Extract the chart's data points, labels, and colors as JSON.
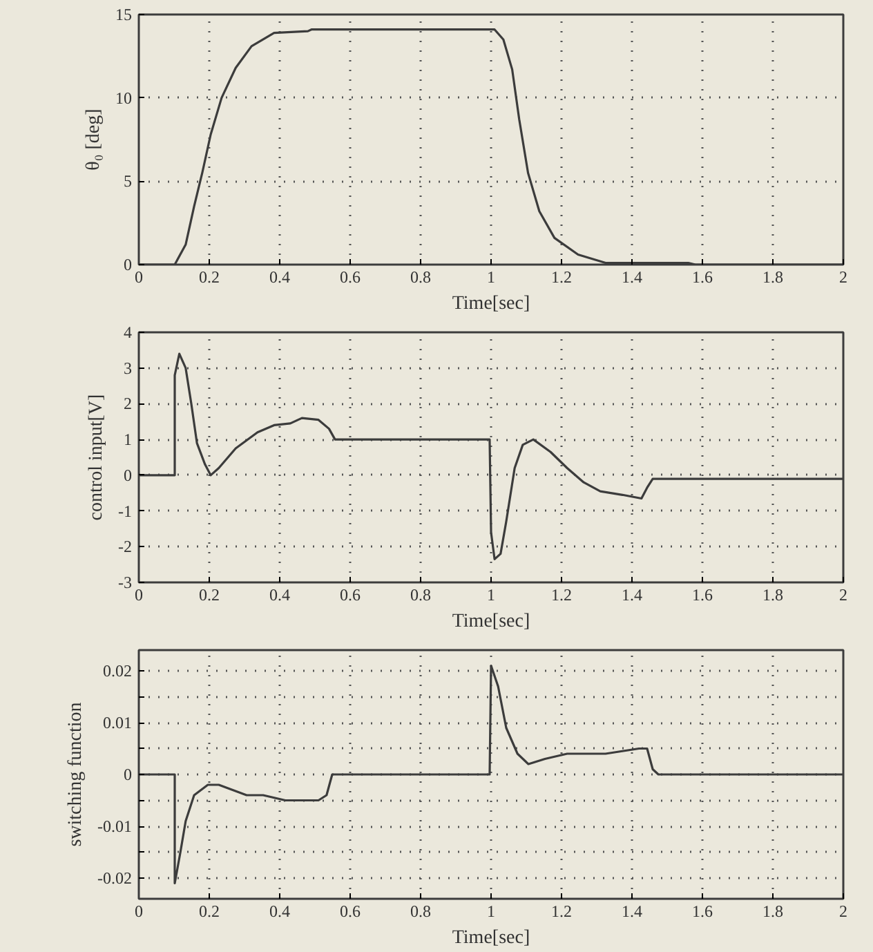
{
  "chart_data": [
    {
      "type": "line",
      "xlabel": "Time[sec]",
      "ylabel": "θ₀ [deg]",
      "color": "#3c3c3c",
      "grid": true,
      "x": [
        0,
        0.102,
        0.133,
        0.157,
        0.18,
        0.204,
        0.235,
        0.275,
        0.32,
        0.384,
        0.48,
        0.49,
        1.01,
        1.035,
        1.06,
        1.08,
        1.105,
        1.137,
        1.18,
        1.247,
        1.325,
        1.56,
        1.58,
        2
      ],
      "values": [
        0,
        0,
        1.2,
        3.5,
        5.5,
        7.8,
        10,
        11.8,
        13.1,
        13.9,
        14.0,
        14.1,
        14.1,
        13.5,
        11.7,
        8.7,
        5.5,
        3.2,
        1.6,
        0.6,
        0.1,
        0.1,
        0,
        0
      ],
      "xlim": [
        0,
        2
      ],
      "ylim": [
        0,
        15
      ],
      "xticks": [
        0,
        0.2,
        0.4,
        0.6,
        0.8,
        1,
        1.2,
        1.4,
        1.6,
        1.8,
        2
      ],
      "yticks": [
        0,
        5,
        10,
        15
      ]
    },
    {
      "type": "line",
      "xlabel": "Time[sec]",
      "ylabel": "control input[V]",
      "color": "#3c3c3c",
      "grid": true,
      "x": [
        0,
        0.102,
        0.102,
        0.115,
        0.133,
        0.149,
        0.165,
        0.188,
        0.204,
        0.227,
        0.275,
        0.337,
        0.384,
        0.43,
        0.463,
        0.51,
        0.54,
        0.557,
        0.996,
        1.0,
        1.01,
        1.027,
        1.043,
        1.067,
        1.09,
        1.12,
        1.169,
        1.216,
        1.263,
        1.31,
        1.373,
        1.427,
        1.443,
        1.459,
        2
      ],
      "values": [
        0,
        0,
        2.8,
        3.4,
        3.0,
        2.0,
        0.9,
        0.3,
        0,
        0.2,
        0.75,
        1.2,
        1.4,
        1.45,
        1.6,
        1.55,
        1.3,
        1.0,
        1.0,
        -1.6,
        -2.35,
        -2.2,
        -1.3,
        0.2,
        0.85,
        1.0,
        0.65,
        0.2,
        -0.2,
        -0.45,
        -0.55,
        -0.65,
        -0.35,
        -0.1,
        -0.1
      ],
      "xlim": [
        0,
        2
      ],
      "ylim": [
        -3,
        4
      ],
      "xticks": [
        0,
        0.2,
        0.4,
        0.6,
        0.8,
        1,
        1.2,
        1.4,
        1.6,
        1.8,
        2
      ],
      "yticks": [
        -3,
        -2,
        -1,
        0,
        1,
        2,
        3,
        4
      ]
    },
    {
      "type": "line",
      "xlabel": "Time[sec]",
      "ylabel": "switching function",
      "color": "#3c3c3c",
      "grid": true,
      "x": [
        0,
        0.102,
        0.102,
        0.118,
        0.133,
        0.157,
        0.196,
        0.227,
        0.306,
        0.353,
        0.416,
        0.51,
        0.533,
        0.549,
        0.996,
        1.0,
        1.02,
        1.043,
        1.075,
        1.106,
        1.153,
        1.216,
        1.325,
        1.42,
        1.443,
        1.459,
        1.475,
        2
      ],
      "values": [
        0,
        0,
        -0.021,
        -0.015,
        -0.009,
        -0.004,
        -0.002,
        -0.002,
        -0.004,
        -0.004,
        -0.005,
        -0.005,
        -0.004,
        0,
        0,
        0.021,
        0.017,
        0.009,
        0.004,
        0.002,
        0.003,
        0.004,
        0.004,
        0.005,
        0.005,
        0.001,
        0,
        0
      ],
      "xlim": [
        0,
        2
      ],
      "ylim": [
        -0.024,
        0.024
      ],
      "xticks": [
        0,
        0.2,
        0.4,
        0.6,
        0.8,
        1,
        1.2,
        1.4,
        1.6,
        1.8,
        2
      ],
      "yticks": [
        -0.02,
        {
          "value": -0.015,
          "label": null
        },
        -0.01,
        {
          "value": -0.005,
          "label": null
        },
        0,
        {
          "value": 0.005,
          "label": null
        },
        0.01,
        {
          "value": 0.015,
          "label": null
        },
        0.02
      ]
    }
  ]
}
